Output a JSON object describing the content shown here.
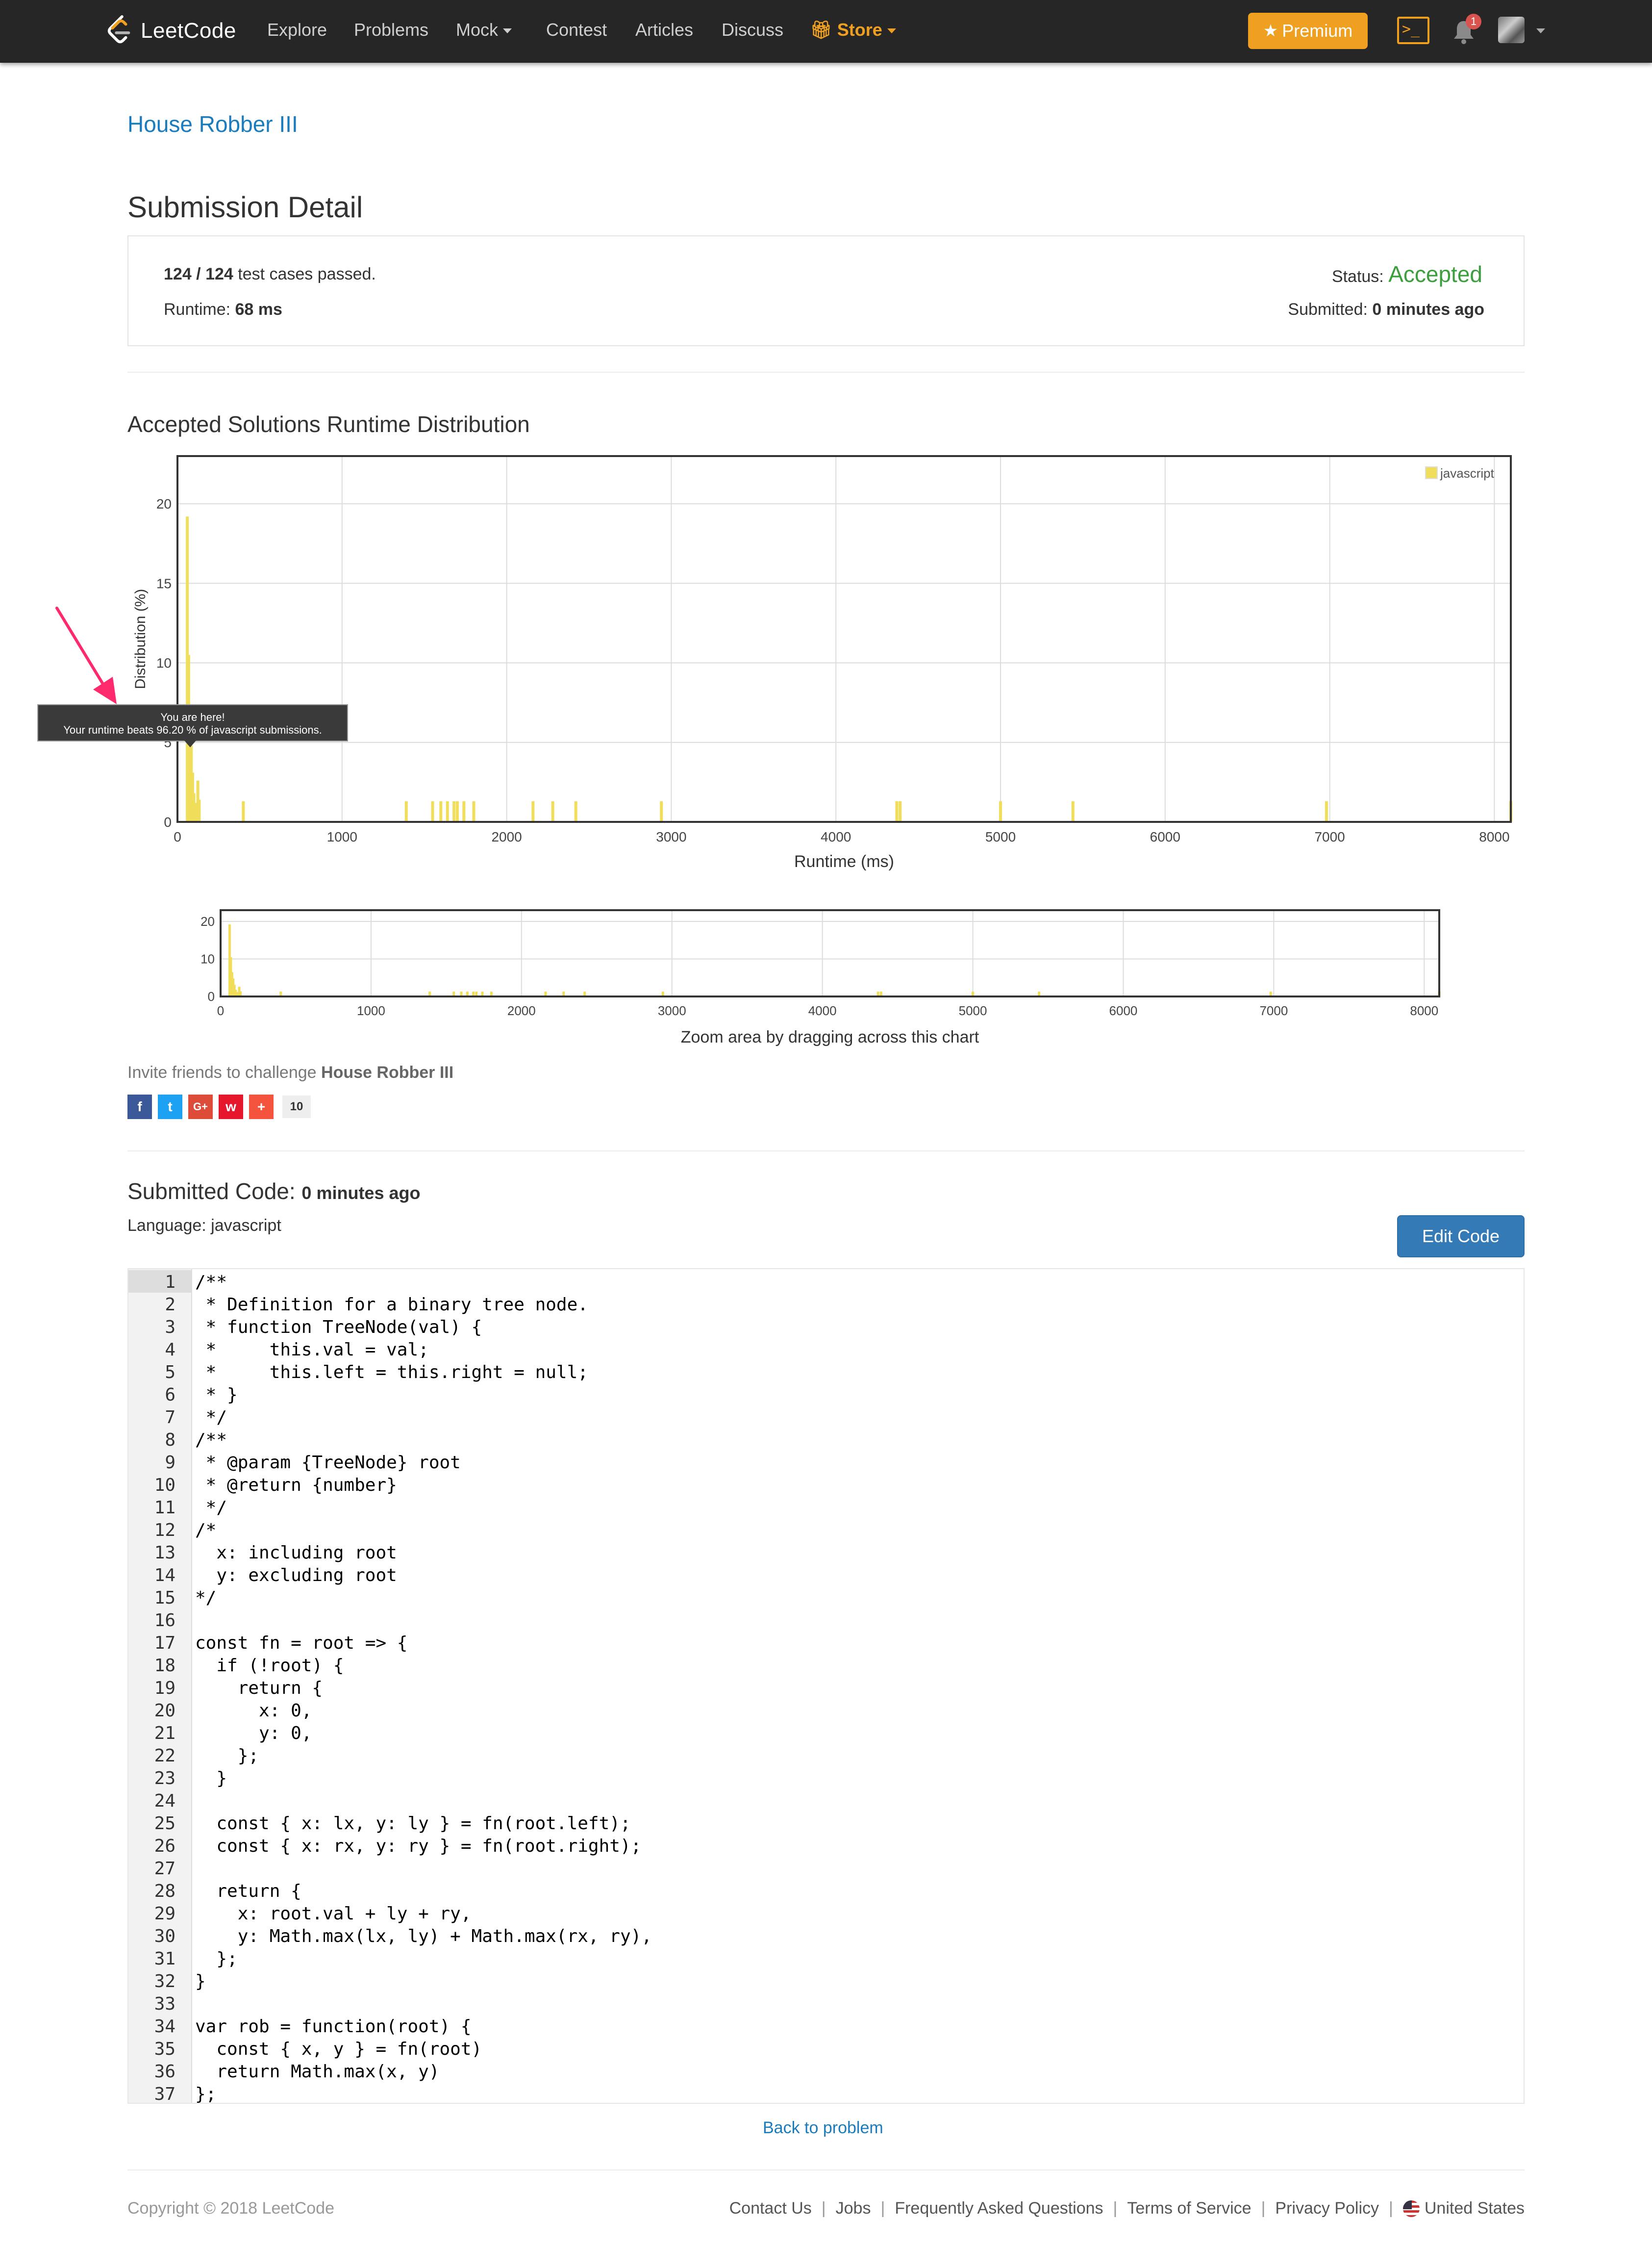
{
  "nav": {
    "brand": "LeetCode",
    "items": [
      "Explore",
      "Problems",
      "Mock",
      "Contest",
      "Articles",
      "Discuss",
      "Store"
    ],
    "premium_label": "Premium",
    "console_glyph": ">_",
    "notifications": "1",
    "accent": "#f0a020"
  },
  "problem_title": "House Robber III",
  "page_title": "Submission Detail",
  "detail": {
    "passed": "124 / 124",
    "passed_suffix": " test cases passed.",
    "runtime_label": "Runtime: ",
    "runtime_value": "68 ms",
    "status_label": "Status: ",
    "status_value": "Accepted",
    "status_color": "#3c9e3c",
    "submitted_label": "Submitted: ",
    "submitted_value": "0 minutes ago"
  },
  "distribution_title": "Accepted Solutions Runtime Distribution",
  "tooltip": {
    "line1": "You are here!",
    "line2": "Your runtime beats 96.20 % of javascript submissions."
  },
  "chart_data": [
    {
      "type": "bar",
      "xlabel": "Runtime (ms)",
      "ylabel": "Distribution (%)",
      "xlim": [
        0,
        8100
      ],
      "ylim": [
        0,
        23
      ],
      "xticks": [
        0,
        1000,
        2000,
        3000,
        4000,
        5000,
        6000,
        7000,
        8000
      ],
      "yticks": [
        0,
        5,
        10,
        15,
        20
      ],
      "grid": true,
      "legend": "top-right",
      "series": [
        {
          "name": "javascript",
          "color": "#f0de5a",
          "x": [
            60,
            68,
            76,
            84,
            92,
            100,
            108,
            116,
            124,
            132,
            400,
            1390,
            1550,
            1600,
            1640,
            1680,
            1700,
            1740,
            1800,
            2160,
            2280,
            2420,
            2940,
            4370,
            4390,
            5000,
            5440,
            6980,
            8100
          ],
          "values": [
            19.2,
            10.5,
            6.5,
            4.8,
            3.1,
            1.8,
            1.2,
            0.9,
            2.6,
            1.4,
            1.3,
            1.3,
            1.3,
            1.3,
            1.3,
            1.3,
            1.3,
            1.3,
            1.3,
            1.3,
            1.3,
            1.3,
            1.3,
            1.3,
            1.3,
            1.3,
            1.3,
            1.3,
            1.3
          ]
        }
      ]
    },
    {
      "type": "bar",
      "xlabel": "Zoom area by dragging across this chart",
      "xlim": [
        0,
        8100
      ],
      "ylim": [
        0,
        23
      ],
      "xticks": [
        0,
        1000,
        2000,
        3000,
        4000,
        5000,
        6000,
        7000,
        8000
      ],
      "yticks": [
        0,
        10,
        20
      ],
      "grid": true
    }
  ],
  "invite": {
    "text": "Invite friends to challenge ",
    "problem": "House Robber III",
    "share_count": "10",
    "buttons": [
      {
        "glyph": "f",
        "color": "#3b5998"
      },
      {
        "glyph": "t",
        "color": "#1da1f2"
      },
      {
        "glyph": "G+",
        "color": "#dd4b39"
      },
      {
        "glyph": "w",
        "color": "#e6162d"
      },
      {
        "glyph": "+",
        "color": "#f4533d"
      }
    ]
  },
  "submitted_code": {
    "title": "Submitted Code: ",
    "time": "0 minutes ago",
    "language": "Language: javascript",
    "edit_label": "Edit Code",
    "lines": [
      "/**",
      " * Definition for a binary tree node.",
      " * function TreeNode(val) {",
      " *     this.val = val;",
      " *     this.left = this.right = null;",
      " * }",
      " */",
      "/**",
      " * @param {TreeNode} root",
      " * @return {number}",
      " */",
      "/*",
      "  x: including root",
      "  y: excluding root",
      "*/",
      "",
      "const fn = root => {",
      "  if (!root) {",
      "    return {",
      "      x: 0,",
      "      y: 0,",
      "    };",
      "  }",
      "",
      "  const { x: lx, y: ly } = fn(root.left);",
      "  const { x: rx, y: ry } = fn(root.right);",
      "",
      "  return {",
      "    x: root.val + ly + ry,",
      "    y: Math.max(lx, ly) + Math.max(rx, ry),",
      "  };",
      "}",
      "",
      "var rob = function(root) {",
      "  const { x, y } = fn(root)",
      "  return Math.max(x, y)",
      "};"
    ]
  },
  "back_label": "Back to problem",
  "footer": {
    "copyright": "Copyright © 2018 LeetCode",
    "links": [
      "Contact Us",
      "Jobs",
      "Frequently Asked Questions",
      "Terms of Service",
      "Privacy Policy"
    ],
    "region": "United States"
  }
}
